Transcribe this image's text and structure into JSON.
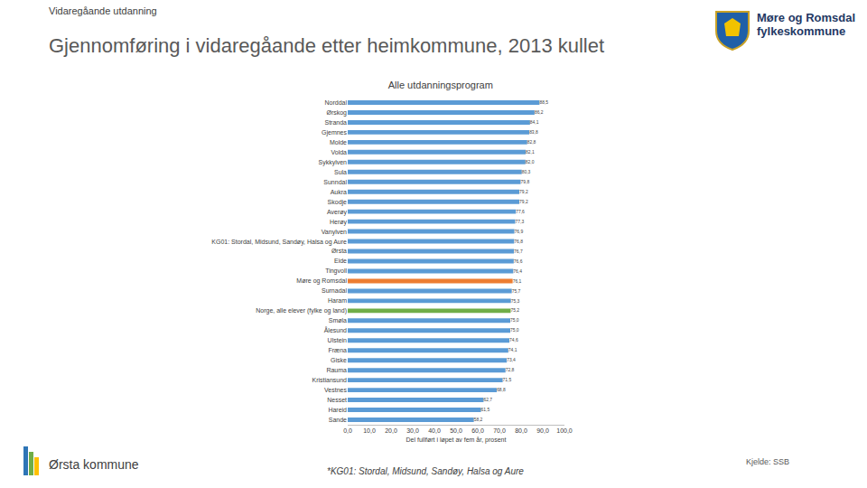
{
  "slide": {
    "kicker": "Vidaregåande utdanning",
    "heading": "Gjennomføring i vidaregåande etter heimkommune, 2013 kullet",
    "organisation": [
      "Møre og Romsdal",
      "fylkeskommune"
    ],
    "municipality": "Ørsta kommune",
    "footnote": "*KG01: Stordal, Midsund, Sandøy, Halsa og Aure",
    "source": "Kjelde: SSB"
  },
  "chart_data": {
    "type": "bar",
    "orientation": "horizontal",
    "title": "Alle utdanningsprogram",
    "x_label": "Del fullført i løpet av fem år, prosent",
    "categories": [
      "Norddal",
      "Ørskog",
      "Stranda",
      "Gjemnes",
      "Molde",
      "Volda",
      "Sykkylven",
      "Sula",
      "Sunndal",
      "Aukra",
      "Skodje",
      "Averøy",
      "Herøy",
      "Vanylven",
      "KG01: Stordal, Midsund, Sandøy, Halsa og Aure",
      "Ørsta",
      "Eide",
      "Tingvoll",
      "Møre og Romsdal",
      "Surnadal",
      "Haram",
      "Norge, alle elever (fylke og land)",
      "Smøla",
      "Ålesund",
      "Ulstein",
      "Fræna",
      "Giske",
      "Rauma",
      "Kristiansund",
      "Vestnes",
      "Nesset",
      "Hareid",
      "Sande"
    ],
    "values": [
      88.5,
      86.2,
      84.1,
      83.8,
      82.8,
      82.1,
      82.0,
      80.3,
      79.8,
      79.2,
      79.2,
      77.6,
      77.3,
      76.9,
      76.8,
      76.7,
      76.6,
      76.4,
      76.1,
      75.7,
      75.3,
      75.2,
      75.0,
      75.0,
      74.6,
      74.1,
      73.4,
      72.8,
      71.5,
      68.8,
      62.7,
      61.5,
      58.2
    ],
    "value_labels": [
      "88,5",
      "86,2",
      "84,1",
      "83,8",
      "82,8",
      "82,1",
      "82,0",
      "80,3",
      "79,8",
      "79,2",
      "79,2",
      "77,6",
      "77,3",
      "76,9",
      "76,8",
      "76,7",
      "76,6",
      "76,4",
      "76,1",
      "75,7",
      "75,3",
      "75,2",
      "75,0",
      "75,0",
      "74,6",
      "74,1",
      "73,4",
      "72,8",
      "71,5",
      "68,8",
      "62,7",
      "61,5",
      "58,2"
    ],
    "colors": [
      "#5b9bd5",
      "#5b9bd5",
      "#5b9bd5",
      "#5b9bd5",
      "#5b9bd5",
      "#5b9bd5",
      "#5b9bd5",
      "#5b9bd5",
      "#5b9bd5",
      "#5b9bd5",
      "#5b9bd5",
      "#5b9bd5",
      "#5b9bd5",
      "#5b9bd5",
      "#5b9bd5",
      "#5b9bd5",
      "#5b9bd5",
      "#5b9bd5",
      "#ed7d31",
      "#5b9bd5",
      "#5b9bd5",
      "#70ad47",
      "#5b9bd5",
      "#5b9bd5",
      "#5b9bd5",
      "#5b9bd5",
      "#5b9bd5",
      "#5b9bd5",
      "#5b9bd5",
      "#5b9bd5",
      "#5b9bd5",
      "#5b9bd5",
      "#5b9bd5"
    ],
    "data_labels": true,
    "grid": false,
    "xlim": [
      0,
      100
    ],
    "xticks": [
      {
        "value": 0,
        "label": "0,0"
      },
      {
        "value": 10,
        "label": "10,0"
      },
      {
        "value": 20,
        "label": "20,0"
      },
      {
        "value": 30,
        "label": "30,0"
      },
      {
        "value": 40,
        "label": "40,0"
      },
      {
        "value": 50,
        "label": "50,0"
      },
      {
        "value": 60,
        "label": "60,0"
      },
      {
        "value": 70,
        "label": "70,0"
      },
      {
        "value": 80,
        "label": "80,0"
      },
      {
        "value": 90,
        "label": "90,0"
      },
      {
        "value": 100,
        "label": "100,0"
      }
    ]
  }
}
